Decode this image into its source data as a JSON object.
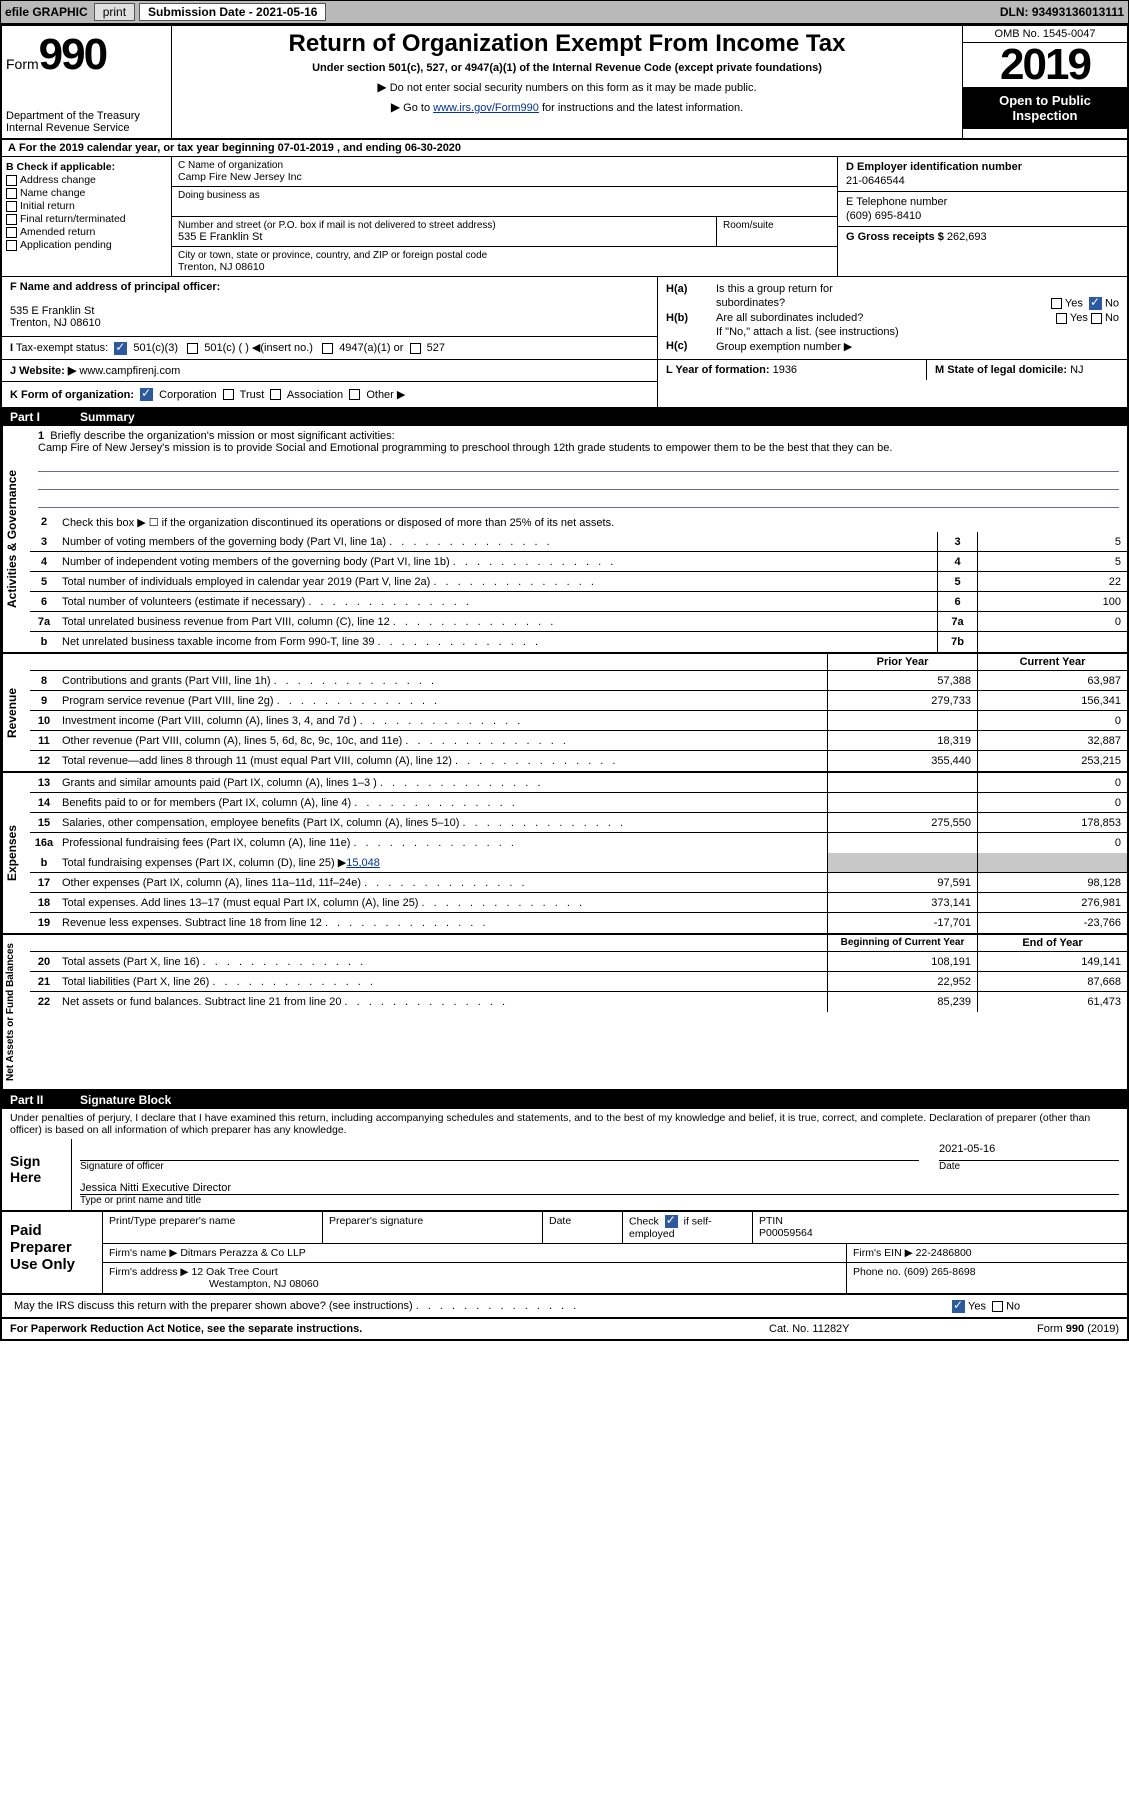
{
  "topbar": {
    "efile": "efile GRAPHIC",
    "print": "print",
    "submission_label": "Submission Date - 2021-05-16",
    "dln": "DLN: 93493136013111"
  },
  "header": {
    "form_prefix": "Form",
    "form_number": "990",
    "dept": "Department of the Treasury",
    "irs": "Internal Revenue Service",
    "title": "Return of Organization Exempt From Income Tax",
    "subtitle": "Under section 501(c), 527, or 4947(a)(1) of the Internal Revenue Code (except private foundations)",
    "note1": "Do not enter social security numbers on this form as it may be made public.",
    "note2_pre": "Go to ",
    "note2_link": "www.irs.gov/Form990",
    "note2_post": " for instructions and the latest information.",
    "omb": "OMB No. 1545-0047",
    "year": "2019",
    "inspect": "Open to Public Inspection"
  },
  "row_a": "For the 2019 calendar year, or tax year beginning 07-01-2019    , and ending 06-30-2020",
  "col_b": {
    "header": "B Check if applicable:",
    "items": [
      "Address change",
      "Name change",
      "Initial return",
      "Final return/terminated",
      "Amended return",
      "Application pending"
    ]
  },
  "col_c": {
    "name_label": "C Name of organization",
    "name": "Camp Fire New Jersey Inc",
    "dba_label": "Doing business as",
    "dba": "",
    "addr_label": "Number and street (or P.O. box if mail is not delivered to street address)",
    "room_label": "Room/suite",
    "addr": "535 E Franklin St",
    "city_label": "City or town, state or province, country, and ZIP or foreign postal code",
    "city": "Trenton, NJ  08610"
  },
  "col_d": {
    "ein_label": "D Employer identification number",
    "ein": "21-0646544",
    "phone_label": "E Telephone number",
    "phone": "(609) 695-8410",
    "gross_label": "G Gross receipts $",
    "gross": "262,693"
  },
  "section_f": {
    "label": "F  Name and address of principal officer:",
    "addr1": "535 E Franklin St",
    "addr2": "Trenton, NJ  08610"
  },
  "section_h": {
    "ha_label": "Is this a group return for",
    "ha_label2": "subordinates?",
    "hb_label": "Are all subordinates included?",
    "hb_note": "If \"No,\" attach a list. (see instructions)",
    "hc_label": "Group exemption number ▶",
    "yes": "Yes",
    "no": "No"
  },
  "section_i": {
    "label": "Tax-exempt status:",
    "opt1": "501(c)(3)",
    "opt2": "501(c) (   ) ◀(insert no.)",
    "opt3": "4947(a)(1) or",
    "opt4": "527"
  },
  "section_j": {
    "label": "J    Website: ▶",
    "value": "www.campfirenj.com"
  },
  "section_k": {
    "label": "K Form of organization:",
    "opts": [
      "Corporation",
      "Trust",
      "Association",
      "Other ▶"
    ]
  },
  "section_l": {
    "label": "L Year of formation:",
    "value": "1936"
  },
  "section_m": {
    "label": "M State of legal domicile:",
    "value": "NJ"
  },
  "part1": {
    "header": "Part I",
    "title": "Summary",
    "side1": "Activities & Governance",
    "side2": "Revenue",
    "side3": "Expenses",
    "side4": "Net Assets or Fund Balances",
    "line1_label": "Briefly describe the organization's mission or most significant activities:",
    "line1_text": "Camp Fire of New Jersey's mission is to provide Social and Emotional programming to preschool through 12th grade students to empower them to be the best that they can be.",
    "line2_label": "Check this box ▶ ☐  if the organization discontinued its operations or disposed of more than 25% of its net assets.",
    "lines_ag": [
      {
        "n": "3",
        "d": "Number of voting members of the governing body (Part VI, line 1a)",
        "box": "3",
        "v": "5"
      },
      {
        "n": "4",
        "d": "Number of independent voting members of the governing body (Part VI, line 1b)",
        "box": "4",
        "v": "5"
      },
      {
        "n": "5",
        "d": "Total number of individuals employed in calendar year 2019 (Part V, line 2a)",
        "box": "5",
        "v": "22"
      },
      {
        "n": "6",
        "d": "Total number of volunteers (estimate if necessary)",
        "box": "6",
        "v": "100"
      },
      {
        "n": "7a",
        "d": "Total unrelated business revenue from Part VIII, column (C), line 12",
        "box": "7a",
        "v": "0"
      },
      {
        "n": "b",
        "d": "Net unrelated business taxable income from Form 990-T, line 39",
        "box": "7b",
        "v": ""
      }
    ],
    "col_prior": "Prior Year",
    "col_current": "Current Year",
    "lines_rev": [
      {
        "n": "8",
        "d": "Contributions and grants (Part VIII, line 1h)",
        "p": "57,388",
        "c": "63,987"
      },
      {
        "n": "9",
        "d": "Program service revenue (Part VIII, line 2g)",
        "p": "279,733",
        "c": "156,341"
      },
      {
        "n": "10",
        "d": "Investment income (Part VIII, column (A), lines 3, 4, and 7d )",
        "p": "",
        "c": "0"
      },
      {
        "n": "11",
        "d": "Other revenue (Part VIII, column (A), lines 5, 6d, 8c, 9c, 10c, and 11e)",
        "p": "18,319",
        "c": "32,887"
      },
      {
        "n": "12",
        "d": "Total revenue—add lines 8 through 11 (must equal Part VIII, column (A), line 12)",
        "p": "355,440",
        "c": "253,215"
      }
    ],
    "lines_exp": [
      {
        "n": "13",
        "d": "Grants and similar amounts paid (Part IX, column (A), lines 1–3 )",
        "p": "",
        "c": "0"
      },
      {
        "n": "14",
        "d": "Benefits paid to or for members (Part IX, column (A), line 4)",
        "p": "",
        "c": "0"
      },
      {
        "n": "15",
        "d": "Salaries, other compensation, employee benefits (Part IX, column (A), lines 5–10)",
        "p": "275,550",
        "c": "178,853"
      },
      {
        "n": "16a",
        "d": "Professional fundraising fees (Part IX, column (A), line 11e)",
        "p": "",
        "c": "0"
      }
    ],
    "line16b_pre": "Total fundraising expenses (Part IX, column (D), line 25) ▶",
    "line16b_val": "15,048",
    "lines_exp2": [
      {
        "n": "17",
        "d": "Other expenses (Part IX, column (A), lines 11a–11d, 11f–24e)",
        "p": "97,591",
        "c": "98,128"
      },
      {
        "n": "18",
        "d": "Total expenses. Add lines 13–17 (must equal Part IX, column (A), line 25)",
        "p": "373,141",
        "c": "276,981"
      },
      {
        "n": "19",
        "d": "Revenue less expenses. Subtract line 18 from line 12",
        "p": "-17,701",
        "c": "-23,766"
      }
    ],
    "col_begin": "Beginning of Current Year",
    "col_end": "End of Year",
    "lines_net": [
      {
        "n": "20",
        "d": "Total assets (Part X, line 16)",
        "p": "108,191",
        "c": "149,141"
      },
      {
        "n": "21",
        "d": "Total liabilities (Part X, line 26)",
        "p": "22,952",
        "c": "87,668"
      },
      {
        "n": "22",
        "d": "Net assets or fund balances. Subtract line 21 from line 20",
        "p": "85,239",
        "c": "61,473"
      }
    ]
  },
  "part2": {
    "header": "Part II",
    "title": "Signature Block",
    "penalty": "Under penalties of perjury, I declare that I have examined this return, including accompanying schedules and statements, and to the best of my knowledge and belief, it is true, correct, and complete. Declaration of preparer (other than officer) is based on all information of which preparer has any knowledge.",
    "sign_here": "Sign Here",
    "sig_officer": "Signature of officer",
    "sig_date_label": "Date",
    "sig_date": "2021-05-16",
    "sig_name": "Jessica Nitti Executive Director",
    "sig_name_label": "Type or print name and title",
    "paid": "Paid Preparer Use Only",
    "prep_name_label": "Print/Type preparer's name",
    "prep_sig_label": "Preparer's signature",
    "prep_date_label": "Date",
    "prep_check_label": "Check",
    "prep_check_if": "if self-employed",
    "ptin_label": "PTIN",
    "ptin": "P00059564",
    "firm_name_label": "Firm's name    ▶",
    "firm_name": "Ditmars Perazza & Co LLP",
    "firm_ein_label": "Firm's EIN ▶",
    "firm_ein": "22-2486800",
    "firm_addr_label": "Firm's address ▶",
    "firm_addr1": "12 Oak Tree Court",
    "firm_addr2": "Westampton, NJ  08060",
    "firm_phone_label": "Phone no.",
    "firm_phone": "(609) 265-8698",
    "discuss": "May the IRS discuss this return with the preparer shown above? (see instructions)",
    "yes": "Yes",
    "no": "No"
  },
  "footer": {
    "left": "For Paperwork Reduction Act Notice, see the separate instructions.",
    "mid": "Cat. No. 11282Y",
    "right": "Form 990 (2019)"
  }
}
